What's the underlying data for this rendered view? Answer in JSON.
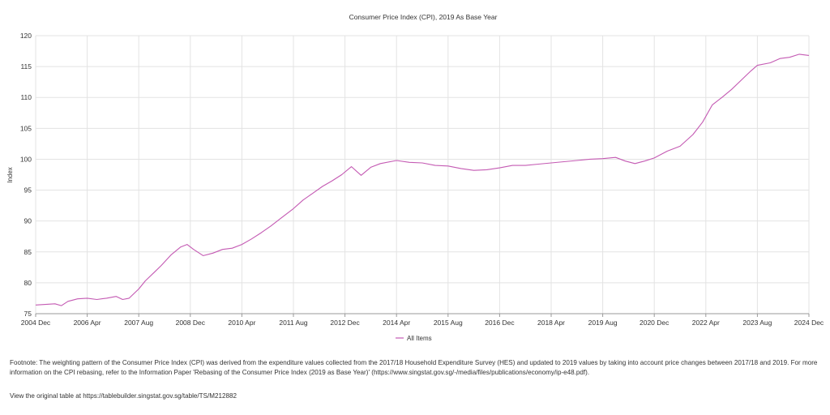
{
  "chart_data": {
    "type": "line",
    "title": "Consumer Price Index (CPI), 2019 As Base Year",
    "ylabel": "Index",
    "xlabel": "",
    "ylim": [
      75,
      120
    ],
    "yticks": [
      75,
      80,
      85,
      90,
      95,
      100,
      105,
      110,
      115,
      120
    ],
    "xlim": [
      "2004-12",
      "2024-12"
    ],
    "xticks": [
      "2004 Dec",
      "2006 Apr",
      "2007 Aug",
      "2008 Dec",
      "2010 Apr",
      "2011 Aug",
      "2012 Dec",
      "2014 Apr",
      "2015 Aug",
      "2016 Dec",
      "2018 Apr",
      "2019 Aug",
      "2020 Dec",
      "2022 Apr",
      "2023 Aug",
      "2024 Dec"
    ],
    "grid": true,
    "legend": "bottom",
    "color": "#c45ab3",
    "series": [
      {
        "name": "All Items",
        "points": [
          [
            "2004-12",
            76.4
          ],
          [
            "2005-03",
            76.5
          ],
          [
            "2005-06",
            76.6
          ],
          [
            "2005-08",
            76.3
          ],
          [
            "2005-10",
            77.0
          ],
          [
            "2006-01",
            77.4
          ],
          [
            "2006-04",
            77.5
          ],
          [
            "2006-07",
            77.3
          ],
          [
            "2006-10",
            77.5
          ],
          [
            "2007-01",
            77.8
          ],
          [
            "2007-03",
            77.3
          ],
          [
            "2007-05",
            77.5
          ],
          [
            "2007-08",
            79.0
          ],
          [
            "2007-10",
            80.3
          ],
          [
            "2008-01",
            81.8
          ],
          [
            "2008-03",
            82.8
          ],
          [
            "2008-06",
            84.5
          ],
          [
            "2008-09",
            85.8
          ],
          [
            "2008-11",
            86.2
          ],
          [
            "2009-01",
            85.4
          ],
          [
            "2009-04",
            84.4
          ],
          [
            "2009-07",
            84.8
          ],
          [
            "2009-10",
            85.4
          ],
          [
            "2010-01",
            85.6
          ],
          [
            "2010-04",
            86.2
          ],
          [
            "2010-07",
            87.1
          ],
          [
            "2010-10",
            88.1
          ],
          [
            "2011-01",
            89.2
          ],
          [
            "2011-04",
            90.4
          ],
          [
            "2011-08",
            92.0
          ],
          [
            "2011-11",
            93.4
          ],
          [
            "2012-02",
            94.5
          ],
          [
            "2012-05",
            95.6
          ],
          [
            "2012-08",
            96.5
          ],
          [
            "2012-11",
            97.5
          ],
          [
            "2013-02",
            98.8
          ],
          [
            "2013-05",
            97.4
          ],
          [
            "2013-08",
            98.7
          ],
          [
            "2013-11",
            99.3
          ],
          [
            "2014-04",
            99.8
          ],
          [
            "2014-08",
            99.5
          ],
          [
            "2014-12",
            99.4
          ],
          [
            "2015-04",
            99.0
          ],
          [
            "2015-08",
            98.9
          ],
          [
            "2015-12",
            98.5
          ],
          [
            "2016-04",
            98.2
          ],
          [
            "2016-08",
            98.3
          ],
          [
            "2016-12",
            98.6
          ],
          [
            "2017-04",
            99.0
          ],
          [
            "2017-08",
            99.0
          ],
          [
            "2017-12",
            99.2
          ],
          [
            "2018-04",
            99.4
          ],
          [
            "2018-08",
            99.6
          ],
          [
            "2018-12",
            99.8
          ],
          [
            "2019-04",
            100.0
          ],
          [
            "2019-08",
            100.1
          ],
          [
            "2019-12",
            100.3
          ],
          [
            "2020-03",
            99.7
          ],
          [
            "2020-06",
            99.3
          ],
          [
            "2020-09",
            99.7
          ],
          [
            "2020-12",
            100.2
          ],
          [
            "2021-04",
            101.3
          ],
          [
            "2021-08",
            102.1
          ],
          [
            "2021-12",
            104.0
          ],
          [
            "2022-03",
            106.0
          ],
          [
            "2022-06",
            108.8
          ],
          [
            "2022-09",
            110.0
          ],
          [
            "2022-12",
            111.3
          ],
          [
            "2023-03",
            112.8
          ],
          [
            "2023-06",
            114.3
          ],
          [
            "2023-08",
            115.2
          ],
          [
            "2023-12",
            115.6
          ],
          [
            "2024-03",
            116.3
          ],
          [
            "2024-06",
            116.5
          ],
          [
            "2024-09",
            117.0
          ],
          [
            "2024-12",
            116.8
          ]
        ]
      }
    ]
  },
  "footnote": "Footnote: The weighting pattern of the Consumer Price Index (CPI) was derived from the expenditure values collected from the 2017/18 Household Expenditure Survey (HES) and updated to 2019 values by taking into account price changes between 2017/18 and 2019. For more information on the CPI rebasing, refer to the Information Paper 'Rebasing of the Consumer Price Index (2019 as Base Year)' (https://www.singstat.gov.sg/-/media/files/publications/economy/ip-e48.pdf).",
  "source_note": "View the original table at https://tablebuilder.singstat.gov.sg/table/TS/M212882"
}
